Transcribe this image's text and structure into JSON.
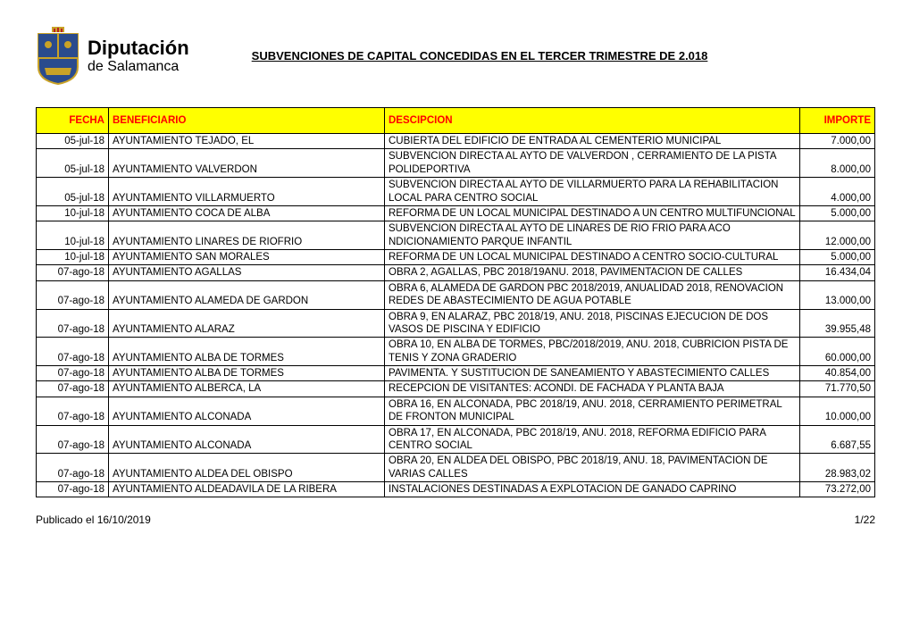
{
  "logo": {
    "line1": "Diputación",
    "line2": "de Salamanca"
  },
  "title": "SUBVENCIONES DE CAPITAL CONCEDIDAS EN EL TERCER TRIMESTRE DE 2.018",
  "headers": {
    "fecha": "FECHA",
    "beneficiario": "BENEFICIARIO",
    "descripcion": "DESCIPCION",
    "importe": "IMPORTE"
  },
  "rows": [
    {
      "fecha": "05-jul-18",
      "beneficiario": "AYUNTAMIENTO TEJADO, EL",
      "descripcion": "CUBIERTA DEL EDIFICIO DE ENTRADA AL CEMENTERIO MUNICIPAL",
      "importe": "7.000,00"
    },
    {
      "fecha": "05-jul-18",
      "beneficiario": "AYUNTAMIENTO VALVERDON",
      "descripcion": "SUBVENCION DIRECTA AL AYTO DE VALVERDON , CERRAMIENTO DE LA PISTA POLIDEPORTIVA",
      "importe": "8.000,00"
    },
    {
      "fecha": "05-jul-18",
      "beneficiario": "AYUNTAMIENTO VILLARMUERTO",
      "descripcion": "SUBVENCION DIRECTA AL AYTO DE VILLARMUERTO PARA LA REHABILITACION LOCAL PARA CENTRO SOCIAL",
      "importe": "4.000,00"
    },
    {
      "fecha": "10-jul-18",
      "beneficiario": "AYUNTAMIENTO COCA DE ALBA",
      "descripcion": "REFORMA DE UN LOCAL MUNICIPAL DESTINADO A UN CENTRO MULTIFUNCIONAL",
      "importe": "5.000,00"
    },
    {
      "fecha": "10-jul-18",
      "beneficiario": "AYUNTAMIENTO LINARES DE RIOFRIO",
      "descripcion": "SUBVENCION DIRECTA  AL AYTO DE LINARES DE RIO FRIO PARA ACO NDICIONAMIENTO PARQUE INFANTIL",
      "importe": "12.000,00"
    },
    {
      "fecha": "10-jul-18",
      "beneficiario": "AYUNTAMIENTO SAN MORALES",
      "descripcion": "REFORMA DE UN LOCAL MUNICIPAL DESTINADO  A CENTRO SOCIO-CULTURAL",
      "importe": "5.000,00"
    },
    {
      "fecha": "07-ago-18",
      "beneficiario": "AYUNTAMIENTO AGALLAS",
      "descripcion": "OBRA 2,  AGALLAS, PBC 2018/19ANU. 2018, PAVIMENTACION DE CALLES",
      "importe": "16.434,04"
    },
    {
      "fecha": "07-ago-18",
      "beneficiario": "AYUNTAMIENTO ALAMEDA DE GARDON",
      "descripcion": "OBRA 6, ALAMEDA DE GARDON PBC 2018/2019, ANUALIDAD 2018, RENOVACION REDES DE ABASTECIMIENTO DE AGUA POTABLE",
      "importe": "13.000,00"
    },
    {
      "fecha": "07-ago-18",
      "beneficiario": "AYUNTAMIENTO ALARAZ",
      "descripcion": "OBRA 9, EN ALARAZ, PBC 2018/19, ANU. 2018, PISCINAS EJECUCION DE DOS VASOS DE PISCINA Y EDIFICIO",
      "importe": "39.955,48"
    },
    {
      "fecha": "07-ago-18",
      "beneficiario": "AYUNTAMIENTO ALBA DE TORMES",
      "descripcion": "OBRA 10, EN ALBA DE TORMES, PBC/2018/2019, ANU. 2018, CUBRICION PISTA DE TENIS Y ZONA GRADERIO",
      "importe": "60.000,00"
    },
    {
      "fecha": "07-ago-18",
      "beneficiario": "AYUNTAMIENTO ALBA DE TORMES",
      "descripcion": "PAVIMENTA. Y SUSTITUCION DE SANEAMIENTO Y ABASTECIMIENTO CALLES",
      "importe": "40.854,00"
    },
    {
      "fecha": "07-ago-18",
      "beneficiario": "AYUNTAMIENTO ALBERCA, LA",
      "descripcion": "RECEPCION DE VISITANTES: ACONDI. DE FACHADA Y PLANTA BAJA",
      "importe": "71.770,50"
    },
    {
      "fecha": "07-ago-18",
      "beneficiario": "AYUNTAMIENTO ALCONADA",
      "descripcion": "OBRA 16, EN ALCONADA, PBC 2018/19, ANU. 2018, CERRAMIENTO PERIMETRAL DE FRONTON MUNICIPAL",
      "importe": "10.000,00"
    },
    {
      "fecha": "07-ago-18",
      "beneficiario": "AYUNTAMIENTO ALCONADA",
      "descripcion": "OBRA 17, EN ALCONADA, PBC 2018/19, ANU. 2018, REFORMA EDIFICIO PARA CENTRO SOCIAL",
      "importe": "6.687,55"
    },
    {
      "fecha": "07-ago-18",
      "beneficiario": "AYUNTAMIENTO ALDEA DEL OBISPO",
      "descripcion": "OBRA 20, EN ALDEA DEL OBISPO, PBC 2018/19, ANU. 18, PAVIMENTACION DE VARIAS CALLES",
      "importe": "28.983,02"
    },
    {
      "fecha": "07-ago-18",
      "beneficiario": "AYUNTAMIENTO ALDEADAVILA DE LA RIBERA",
      "descripcion": "INSTALACIONES DESTINADAS A EXPLOTACION DE GANADO CAPRINO",
      "importe": "73.272,00"
    }
  ],
  "footer": {
    "left": "Publicado el 16/10/2019",
    "right": "1/22"
  }
}
